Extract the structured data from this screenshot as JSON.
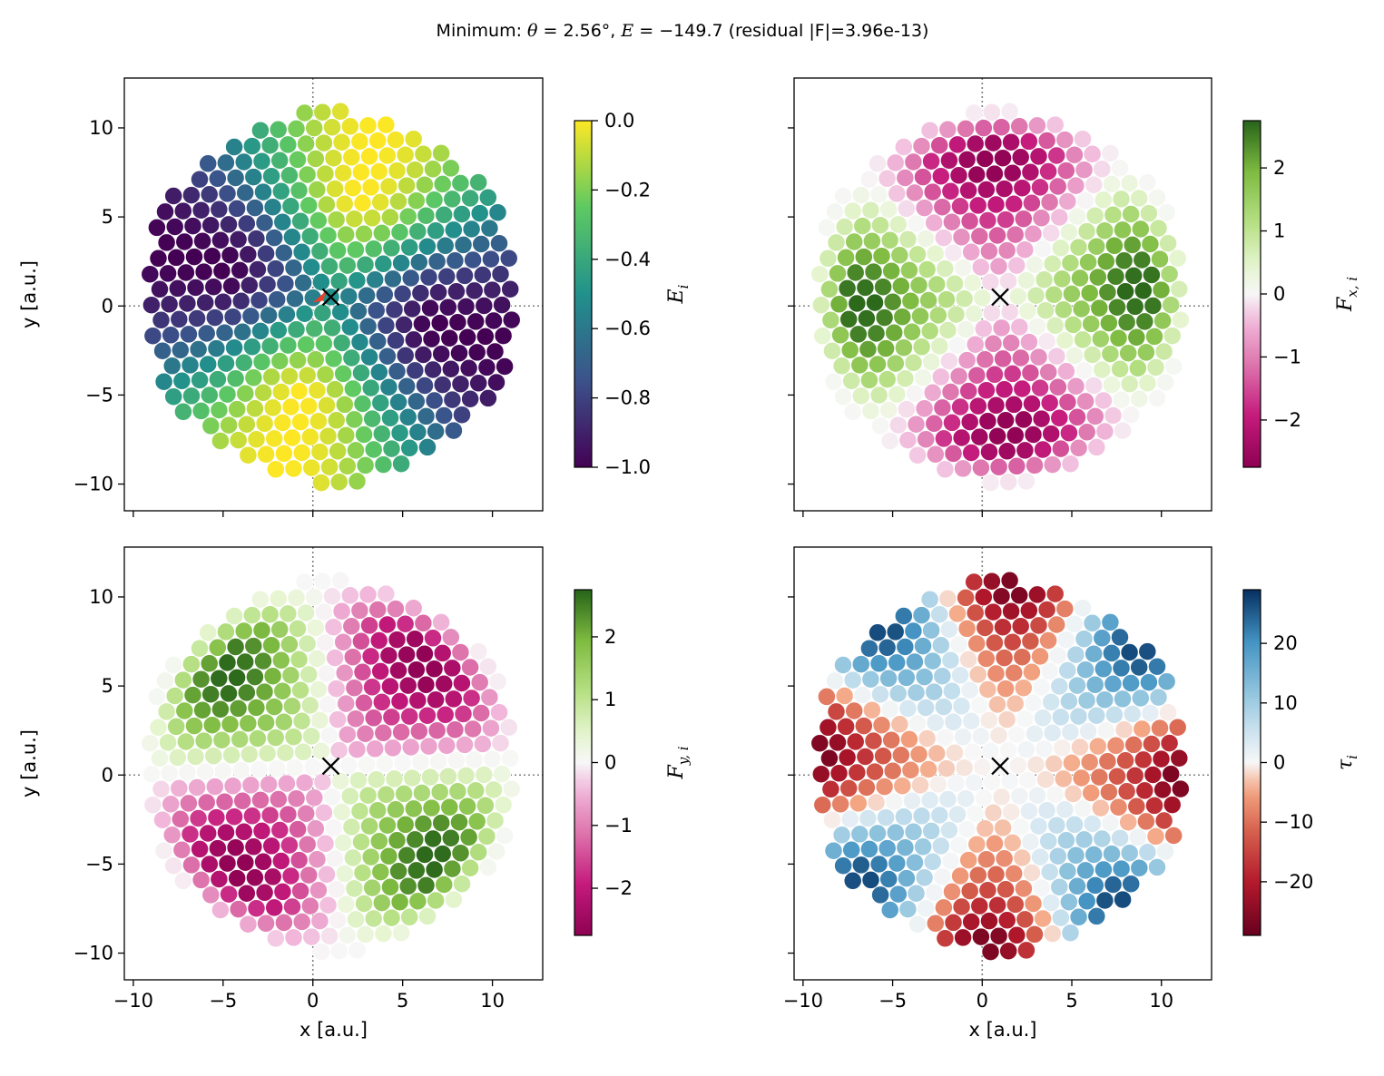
{
  "title": {
    "prefix": "Minimum: ",
    "theta_symbol": "θ",
    "theta_text": " = 2.56°, ",
    "energy_symbol": "E",
    "energy_text": " = −149.7 (residual |F|=3.96e-13)"
  },
  "chart_data": [
    {
      "type": "scatter",
      "panel": "top-left",
      "field": "E_i",
      "colormap": "viridis",
      "xlabel": "",
      "ylabel": "y  [a.u.]",
      "xlim": [
        -10.5,
        12.8
      ],
      "ylim": [
        -11.5,
        12.8
      ],
      "xticks": [
        -10,
        -5,
        0,
        5,
        10
      ],
      "yticks": [
        -10,
        -5,
        0,
        5,
        10
      ],
      "x_tick_labels_shown": false,
      "y_tick_labels_shown": true,
      "colorbar": {
        "label_main": "E",
        "label_sub": "i",
        "range": [
          -1.0,
          0.0
        ],
        "ticks": [
          0.0,
          -0.2,
          -0.4,
          -0.6,
          -0.8,
          -1.0
        ],
        "tick_labels": [
          "0.0",
          "−0.2",
          "−0.4",
          "−0.6",
          "−0.8",
          "−1.0"
        ]
      },
      "minimum_marker": {
        "x": 1.0,
        "y": 0.5,
        "symbol": "×"
      },
      "guide_lines": {
        "x": 0,
        "y": 0,
        "style": "dotted",
        "color": "#808080"
      },
      "has_arrow_near_center": true,
      "arrow_color": "#e8402a"
    },
    {
      "type": "scatter",
      "panel": "top-right",
      "field": "F_x,i",
      "colormap": "PiYG",
      "xlabel": "",
      "ylabel": "",
      "xlim": [
        -10.5,
        12.8
      ],
      "ylim": [
        -11.5,
        12.8
      ],
      "xticks": [
        -10,
        -5,
        0,
        5,
        10
      ],
      "yticks": [
        -10,
        -5,
        0,
        5,
        10
      ],
      "x_tick_labels_shown": false,
      "y_tick_labels_shown": false,
      "colorbar": {
        "label_main": "F",
        "label_sub": "x, i",
        "range": [
          -2.75,
          2.75
        ],
        "ticks": [
          2,
          1,
          0,
          -1,
          -2
        ],
        "tick_labels": [
          "2",
          "1",
          "0",
          "−1",
          "−2"
        ]
      },
      "minimum_marker": {
        "x": 1.0,
        "y": 0.5,
        "symbol": "×"
      },
      "guide_lines": {
        "x": 0,
        "y": 0,
        "style": "dotted",
        "color": "#808080"
      }
    },
    {
      "type": "scatter",
      "panel": "bottom-left",
      "field": "F_y,i",
      "colormap": "PiYG",
      "xlabel": "x  [a.u.]",
      "ylabel": "y  [a.u.]",
      "xlim": [
        -10.5,
        12.8
      ],
      "ylim": [
        -11.5,
        12.8
      ],
      "xticks": [
        -10,
        -5,
        0,
        5,
        10
      ],
      "yticks": [
        -10,
        -5,
        0,
        5,
        10
      ],
      "x_tick_labels_shown": true,
      "y_tick_labels_shown": true,
      "colorbar": {
        "label_main": "F",
        "label_sub": "y, i",
        "range": [
          -2.75,
          2.75
        ],
        "ticks": [
          2,
          1,
          0,
          -1,
          -2
        ],
        "tick_labels": [
          "2",
          "1",
          "0",
          "−1",
          "−2"
        ]
      },
      "minimum_marker": {
        "x": 1.0,
        "y": 0.5,
        "symbol": "×"
      },
      "guide_lines": {
        "x": 0,
        "y": 0,
        "style": "dotted",
        "color": "#808080"
      }
    },
    {
      "type": "scatter",
      "panel": "bottom-right",
      "field": "tau_i",
      "colormap": "RdBu",
      "xlabel": "x  [a.u.]",
      "ylabel": "",
      "xlim": [
        -10.5,
        12.8
      ],
      "ylim": [
        -11.5,
        12.8
      ],
      "xticks": [
        -10,
        -5,
        0,
        5,
        10
      ],
      "yticks": [
        -10,
        -5,
        0,
        5,
        10
      ],
      "x_tick_labels_shown": true,
      "y_tick_labels_shown": false,
      "colorbar": {
        "label_main": "τ",
        "label_sub": "i",
        "range": [
          -29,
          29
        ],
        "ticks": [
          20,
          10,
          0,
          -10,
          -20
        ],
        "tick_labels": [
          "20",
          "10",
          "0",
          "−10",
          "−20"
        ]
      },
      "minimum_marker": {
        "x": 1.0,
        "y": 0.5,
        "symbol": "×"
      },
      "guide_lines": {
        "x": 0,
        "y": 0,
        "style": "dotted",
        "color": "#808080"
      }
    }
  ],
  "lattice": {
    "description_free": true,
    "spacing": 1.0,
    "radius": 10.5,
    "center": [
      1.0,
      0.5
    ],
    "twist_deg": 2.56
  },
  "tick_text": {
    "x": [
      "−10",
      "−5",
      "0",
      "5",
      "10"
    ],
    "y": [
      "−10",
      "−5",
      "0",
      "5",
      "10"
    ]
  }
}
